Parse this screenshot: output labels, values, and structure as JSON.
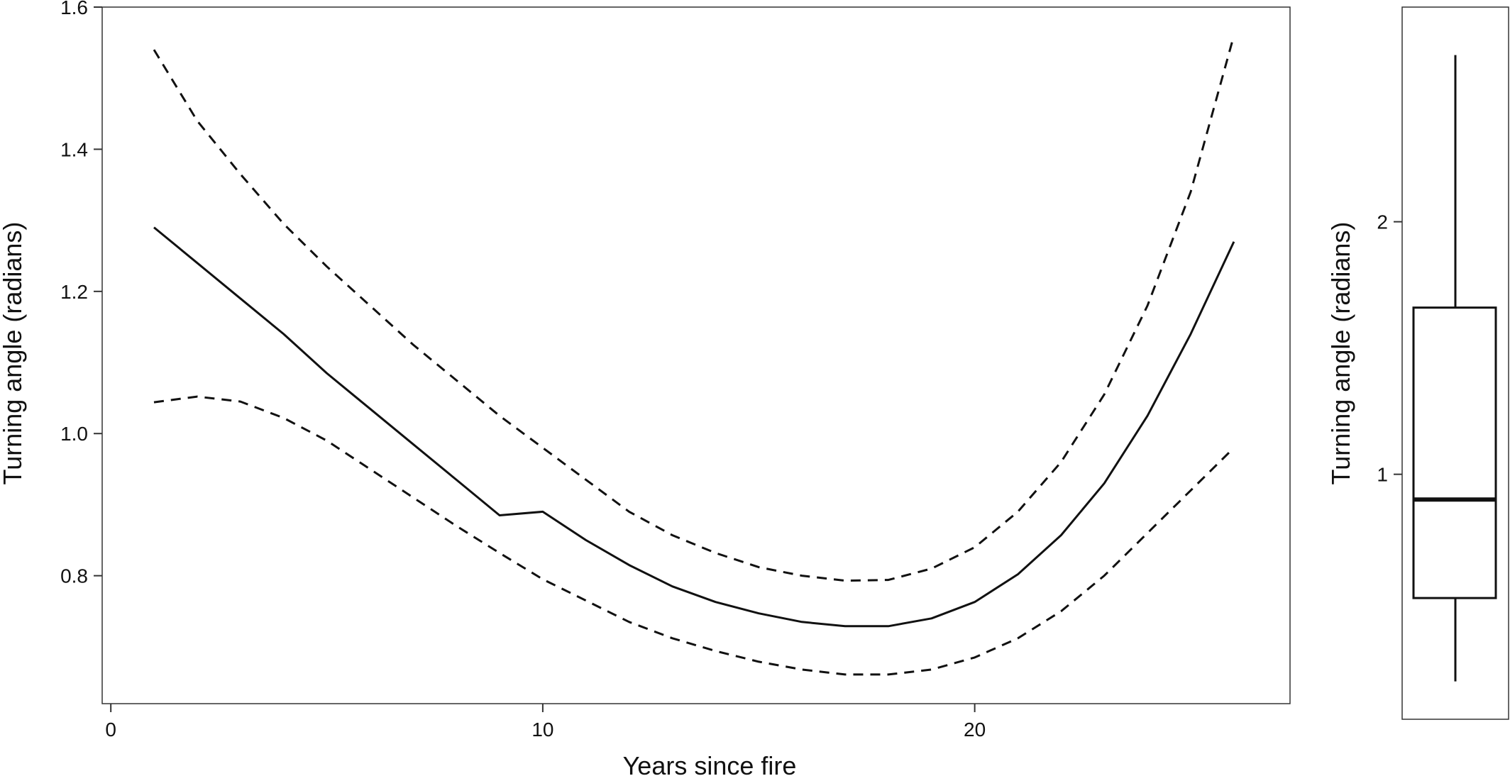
{
  "chart_data": [
    {
      "type": "line",
      "title": "",
      "xlabel": "Years since fire",
      "ylabel": "Turning angle (radians)",
      "xlim": [
        -0.2,
        27.3
      ],
      "ylim": [
        0.62,
        1.6
      ],
      "xticks": [
        0,
        10,
        20
      ],
      "yticks": [
        0.8,
        1.0,
        1.2,
        1.4,
        1.6
      ],
      "xtick_labels": [
        "0",
        "10",
        "20"
      ],
      "ytick_labels": [
        "0.8",
        "1.0",
        "1.2",
        "1.4",
        "1.6"
      ],
      "grid": false,
      "legend": "none",
      "x": [
        1,
        2,
        3,
        4,
        5,
        6,
        7,
        8,
        9,
        10,
        11,
        12,
        13,
        14,
        15,
        16,
        17,
        18,
        19,
        20,
        21,
        22,
        23,
        24,
        25,
        26
      ],
      "series": [
        {
          "style": "solid",
          "color": "#111111",
          "values": [
            1.29,
            1.24,
            1.19,
            1.14,
            1.085,
            1.035,
            0.985,
            0.935,
            0.885,
            0.89,
            0.85,
            0.815,
            0.785,
            0.763,
            0.747,
            0.735,
            0.729,
            0.729,
            0.74,
            0.763,
            0.802,
            0.857,
            0.93,
            1.025,
            1.14,
            1.27
          ]
        },
        {
          "style": "dashed",
          "color": "#111111",
          "values": [
            1.54,
            1.44,
            1.365,
            1.295,
            1.235,
            1.18,
            1.125,
            1.075,
            1.025,
            0.98,
            0.935,
            0.89,
            0.857,
            0.832,
            0.812,
            0.8,
            0.793,
            0.794,
            0.81,
            0.84,
            0.89,
            0.96,
            1.055,
            1.18,
            1.34,
            1.56
          ]
        },
        {
          "style": "dashed",
          "color": "#111111",
          "values": [
            1.044,
            1.052,
            1.045,
            1.022,
            0.99,
            0.95,
            0.91,
            0.87,
            0.832,
            0.795,
            0.765,
            0.735,
            0.712,
            0.694,
            0.679,
            0.668,
            0.661,
            0.661,
            0.668,
            0.685,
            0.712,
            0.75,
            0.8,
            0.86,
            0.92,
            0.98
          ]
        }
      ]
    },
    {
      "type": "box",
      "title": "",
      "xlabel": "",
      "ylabel": "Turning angle (radians)",
      "ylim": [
        0.03,
        2.85
      ],
      "yticks": [
        1,
        2
      ],
      "ytick_labels": [
        "1",
        "2"
      ],
      "grid": false,
      "box": {
        "min": 0.18,
        "q1": 0.51,
        "median": 0.9,
        "q3": 1.66,
        "max": 2.66
      }
    }
  ]
}
